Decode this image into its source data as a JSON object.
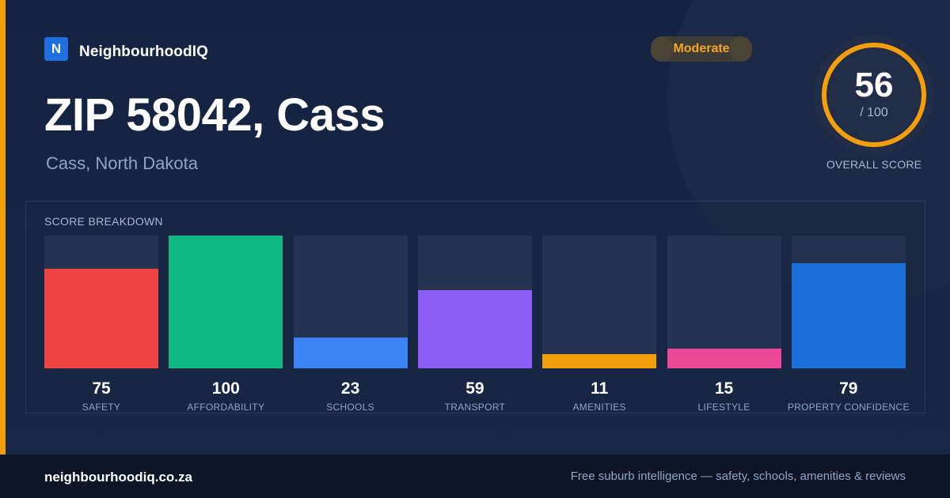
{
  "brand": {
    "logo_letter": "N",
    "name": "NeighbourhoodIQ",
    "logo_color": "#1f6fe0"
  },
  "title": "ZIP 58042, Cass",
  "subtitle": "Cass, North Dakota",
  "badge": {
    "label": "Moderate",
    "color": "#f5a623"
  },
  "overall_score": {
    "value": "56",
    "max_label": "/ 100",
    "caption": "OVERALL SCORE",
    "fraction": 0.56,
    "color": "#f59e0b"
  },
  "breakdown": {
    "label": "SCORE BREAKDOWN",
    "max": 100,
    "items": [
      {
        "label": "SAFETY",
        "value": 75,
        "color": "#ef4444"
      },
      {
        "label": "AFFORDABILITY",
        "value": 100,
        "color": "#10b981"
      },
      {
        "label": "SCHOOLS",
        "value": 23,
        "color": "#3b82f6"
      },
      {
        "label": "TRANSPORT",
        "value": 59,
        "color": "#8b5cf6"
      },
      {
        "label": "AMENITIES",
        "value": 11,
        "color": "#f59e0b"
      },
      {
        "label": "LIFESTYLE",
        "value": 15,
        "color": "#ec4899"
      },
      {
        "label": "PROPERTY CONFIDENCE",
        "value": 79,
        "color": "#1d6fd8"
      }
    ]
  },
  "footer": {
    "url": "neighbourhoodiq.co.za",
    "tagline": "Free suburb intelligence — safety, schools, amenities & reviews"
  }
}
